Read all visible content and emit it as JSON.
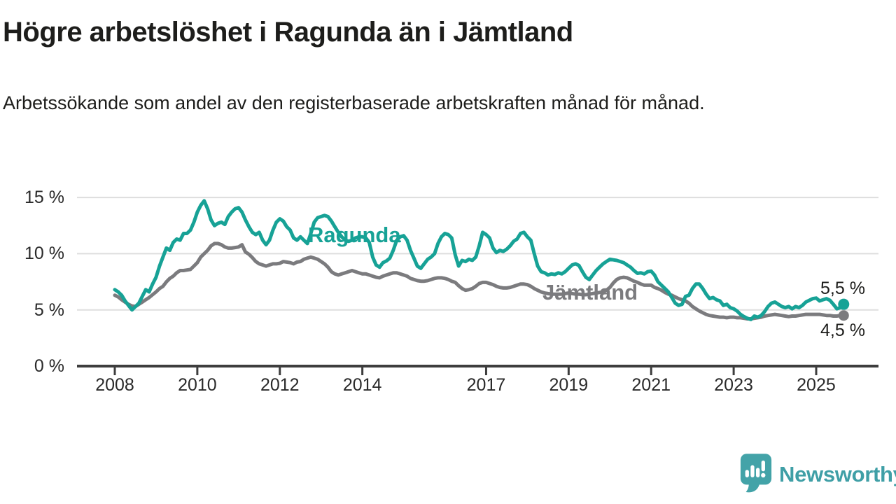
{
  "title": "Högre arbetslöshet i Ragunda än i Jämtland",
  "subtitle": "Arbetssökande som andel av den registerbaserade arbetskraften månad för månad.",
  "branding": {
    "wordmark": "Newsworthy",
    "logo_icon": "speech-bubble-bar-chart-icon",
    "color": "#3f9fa6"
  },
  "colors": {
    "ragunda": "#17a296",
    "jamtland": "#7b7b7e",
    "axis": "#3d3d3d",
    "grid": "#dedede",
    "text": "#1d1d1b",
    "tick_text": "#2a2a2a"
  },
  "chart_data": {
    "type": "line",
    "title": "Högre arbetslöshet i Ragunda än i Jämtland",
    "xlabel": "",
    "ylabel": "",
    "x_unit": "monthly, year fractions",
    "x_start_year": 2008,
    "points_per_year": 12,
    "xlim": [
      2007.1,
      2026.5
    ],
    "ylim": [
      0,
      15.5
    ],
    "grid": true,
    "legend": "inline labels near lines",
    "x_ticks": [
      {
        "value": 2008,
        "label": "2008"
      },
      {
        "value": 2010,
        "label": "2010"
      },
      {
        "value": 2012,
        "label": "2012"
      },
      {
        "value": 2014,
        "label": "2014"
      },
      {
        "value": 2017,
        "label": "2017"
      },
      {
        "value": 2019,
        "label": "2019"
      },
      {
        "value": 2021,
        "label": "2021"
      },
      {
        "value": 2023,
        "label": "2023"
      },
      {
        "value": 2025,
        "label": "2025"
      }
    ],
    "y_ticks": [
      {
        "value": 0,
        "label": "0 %"
      },
      {
        "value": 5,
        "label": "5 %"
      },
      {
        "value": 10,
        "label": "10 %"
      },
      {
        "value": 15,
        "label": "15 %"
      }
    ],
    "series": [
      {
        "name": "Ragunda",
        "color": "#17a296",
        "end_label": "5,5 %",
        "end_value": 5.5,
        "end_dot": true,
        "values": [
          6.8,
          6.6,
          6.3,
          5.8,
          5.4,
          5.0,
          5.3,
          5.6,
          6.2,
          6.8,
          6.6,
          7.3,
          7.9,
          8.9,
          9.7,
          10.5,
          10.3,
          11.0,
          11.3,
          11.2,
          11.8,
          11.8,
          12.1,
          12.8,
          13.7,
          14.3,
          14.7,
          14.0,
          13.0,
          12.5,
          12.7,
          12.8,
          12.6,
          13.3,
          13.7,
          14.0,
          14.1,
          13.7,
          13.0,
          12.4,
          11.9,
          11.7,
          11.9,
          11.2,
          10.8,
          11.2,
          12.1,
          12.8,
          13.1,
          12.9,
          12.4,
          12.1,
          11.4,
          11.2,
          11.5,
          11.2,
          10.9,
          11.8,
          12.8,
          13.2,
          13.3,
          13.4,
          13.3,
          12.9,
          12.4,
          11.9,
          11.5,
          11.2,
          11.1,
          11.2,
          11.4,
          11.5,
          11.5,
          11.4,
          11.0,
          9.7,
          9.0,
          8.8,
          9.2,
          9.35,
          9.6,
          10.3,
          11.2,
          11.5,
          11.6,
          11.2,
          10.3,
          9.6,
          8.9,
          8.7,
          9.1,
          9.5,
          9.7,
          10.0,
          10.9,
          11.5,
          11.8,
          11.7,
          11.4,
          9.9,
          8.9,
          9.4,
          9.3,
          9.5,
          9.4,
          9.7,
          10.7,
          11.9,
          11.7,
          11.4,
          10.5,
          10.1,
          10.3,
          10.2,
          10.4,
          10.7,
          11.1,
          11.3,
          11.8,
          11.9,
          11.5,
          11.2,
          10.0,
          8.9,
          8.4,
          8.3,
          8.1,
          8.2,
          8.15,
          8.3,
          8.2,
          8.4,
          8.7,
          9.0,
          9.1,
          8.95,
          8.4,
          7.9,
          7.7,
          8.1,
          8.5,
          8.8,
          9.1,
          9.3,
          9.5,
          9.45,
          9.4,
          9.3,
          9.2,
          9.0,
          8.8,
          8.5,
          8.25,
          8.3,
          8.2,
          8.4,
          8.45,
          8.1,
          7.5,
          7.2,
          6.9,
          6.6,
          6.1,
          5.6,
          5.4,
          5.5,
          6.2,
          6.3,
          6.9,
          7.3,
          7.3,
          6.9,
          6.4,
          6.0,
          6.1,
          5.9,
          5.8,
          5.4,
          5.5,
          5.2,
          5.1,
          4.9,
          4.6,
          4.4,
          4.25,
          4.15,
          4.45,
          4.35,
          4.5,
          4.85,
          5.3,
          5.6,
          5.7,
          5.5,
          5.3,
          5.2,
          5.3,
          5.1,
          5.3,
          5.2,
          5.4,
          5.7,
          5.85,
          6.0,
          6.05,
          5.8,
          5.9,
          6.0,
          5.85,
          5.5,
          5.1,
          5.2,
          5.5
        ]
      },
      {
        "name": "Jämtland",
        "color": "#7b7b7e",
        "end_label": "4,5 %",
        "end_value": 4.5,
        "end_dot": true,
        "values": [
          6.3,
          6.15,
          5.9,
          5.7,
          5.5,
          5.35,
          5.3,
          5.5,
          5.7,
          5.9,
          6.1,
          6.35,
          6.6,
          6.9,
          7.1,
          7.5,
          7.8,
          8.0,
          8.3,
          8.5,
          8.5,
          8.55,
          8.6,
          8.9,
          9.2,
          9.7,
          10.0,
          10.3,
          10.7,
          10.9,
          10.9,
          10.8,
          10.6,
          10.5,
          10.5,
          10.55,
          10.6,
          10.8,
          10.15,
          9.95,
          9.65,
          9.3,
          9.1,
          9.0,
          8.9,
          9.0,
          9.1,
          9.1,
          9.15,
          9.3,
          9.25,
          9.2,
          9.1,
          9.25,
          9.3,
          9.5,
          9.6,
          9.7,
          9.6,
          9.5,
          9.3,
          9.1,
          8.8,
          8.4,
          8.2,
          8.1,
          8.2,
          8.3,
          8.4,
          8.5,
          8.4,
          8.3,
          8.2,
          8.2,
          8.1,
          8.0,
          7.9,
          7.85,
          8.0,
          8.1,
          8.2,
          8.3,
          8.3,
          8.2,
          8.1,
          8.0,
          7.8,
          7.7,
          7.6,
          7.55,
          7.55,
          7.6,
          7.7,
          7.8,
          7.85,
          7.85,
          7.8,
          7.7,
          7.55,
          7.45,
          7.15,
          6.9,
          6.75,
          6.8,
          6.9,
          7.1,
          7.35,
          7.45,
          7.45,
          7.35,
          7.25,
          7.1,
          7.0,
          6.95,
          6.95,
          7.0,
          7.1,
          7.2,
          7.3,
          7.3,
          7.25,
          7.1,
          6.9,
          6.75,
          6.6,
          6.5,
          6.45,
          6.4,
          6.4,
          6.4,
          6.4,
          6.45,
          6.5,
          6.45,
          6.4,
          6.4,
          6.35,
          6.35,
          6.4,
          6.45,
          6.5,
          6.55,
          6.6,
          6.75,
          7.0,
          7.4,
          7.7,
          7.85,
          7.9,
          7.85,
          7.7,
          7.55,
          7.45,
          7.3,
          7.2,
          7.2,
          7.2,
          7.0,
          6.9,
          6.75,
          6.55,
          6.4,
          6.3,
          6.15,
          6.0,
          5.9,
          5.8,
          5.6,
          5.3,
          5.1,
          4.9,
          4.75,
          4.6,
          4.5,
          4.45,
          4.4,
          4.35,
          4.35,
          4.3,
          4.35,
          4.35,
          4.3,
          4.3,
          4.25,
          4.2,
          4.2,
          4.25,
          4.3,
          4.35,
          4.45,
          4.5,
          4.55,
          4.6,
          4.55,
          4.5,
          4.45,
          4.4,
          4.45,
          4.45,
          4.5,
          4.55,
          4.6,
          4.6,
          4.6,
          4.6,
          4.6,
          4.55,
          4.5,
          4.5,
          4.45,
          4.45,
          4.5,
          4.5
        ]
      }
    ]
  }
}
